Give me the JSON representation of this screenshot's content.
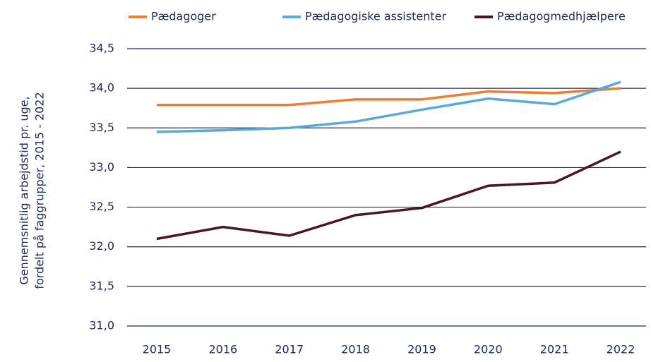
{
  "chart_data": {
    "type": "line",
    "y_label": [
      "Gennemsnitlig arbejdstid pr. uge,",
      "fordelt på faggrupper, 2015 - 2022"
    ],
    "categories": [
      "2015",
      "2016",
      "2017",
      "2018",
      "2019",
      "2020",
      "2021",
      "2022"
    ],
    "series": [
      {
        "name": "Pædagoger",
        "color": "#ef7c35",
        "values": [
          33.79,
          33.79,
          33.79,
          33.86,
          33.86,
          33.96,
          33.94,
          34.0
        ]
      },
      {
        "name": "Pædagogiske assistenter",
        "color": "#5aa9dc",
        "values": [
          33.45,
          33.47,
          33.5,
          33.58,
          33.73,
          33.87,
          33.8,
          34.08
        ]
      },
      {
        "name": "Pædagogmedhjælpere",
        "color": "#4a1526",
        "values": [
          32.1,
          32.25,
          32.14,
          32.4,
          32.49,
          32.77,
          32.81,
          33.2
        ]
      }
    ],
    "ylim": [
      31.0,
      34.5
    ],
    "yticks": [
      {
        "value": 31.0,
        "label": "31,0"
      },
      {
        "value": 31.5,
        "label": "31,5"
      },
      {
        "value": 32.0,
        "label": "32,0"
      },
      {
        "value": 32.5,
        "label": "32,5"
      },
      {
        "value": 33.0,
        "label": "33,0"
      },
      {
        "value": 33.5,
        "label": "33,5"
      },
      {
        "value": 34.0,
        "label": "34,0"
      },
      {
        "value": 34.5,
        "label": "34,5"
      }
    ],
    "grid": true
  }
}
